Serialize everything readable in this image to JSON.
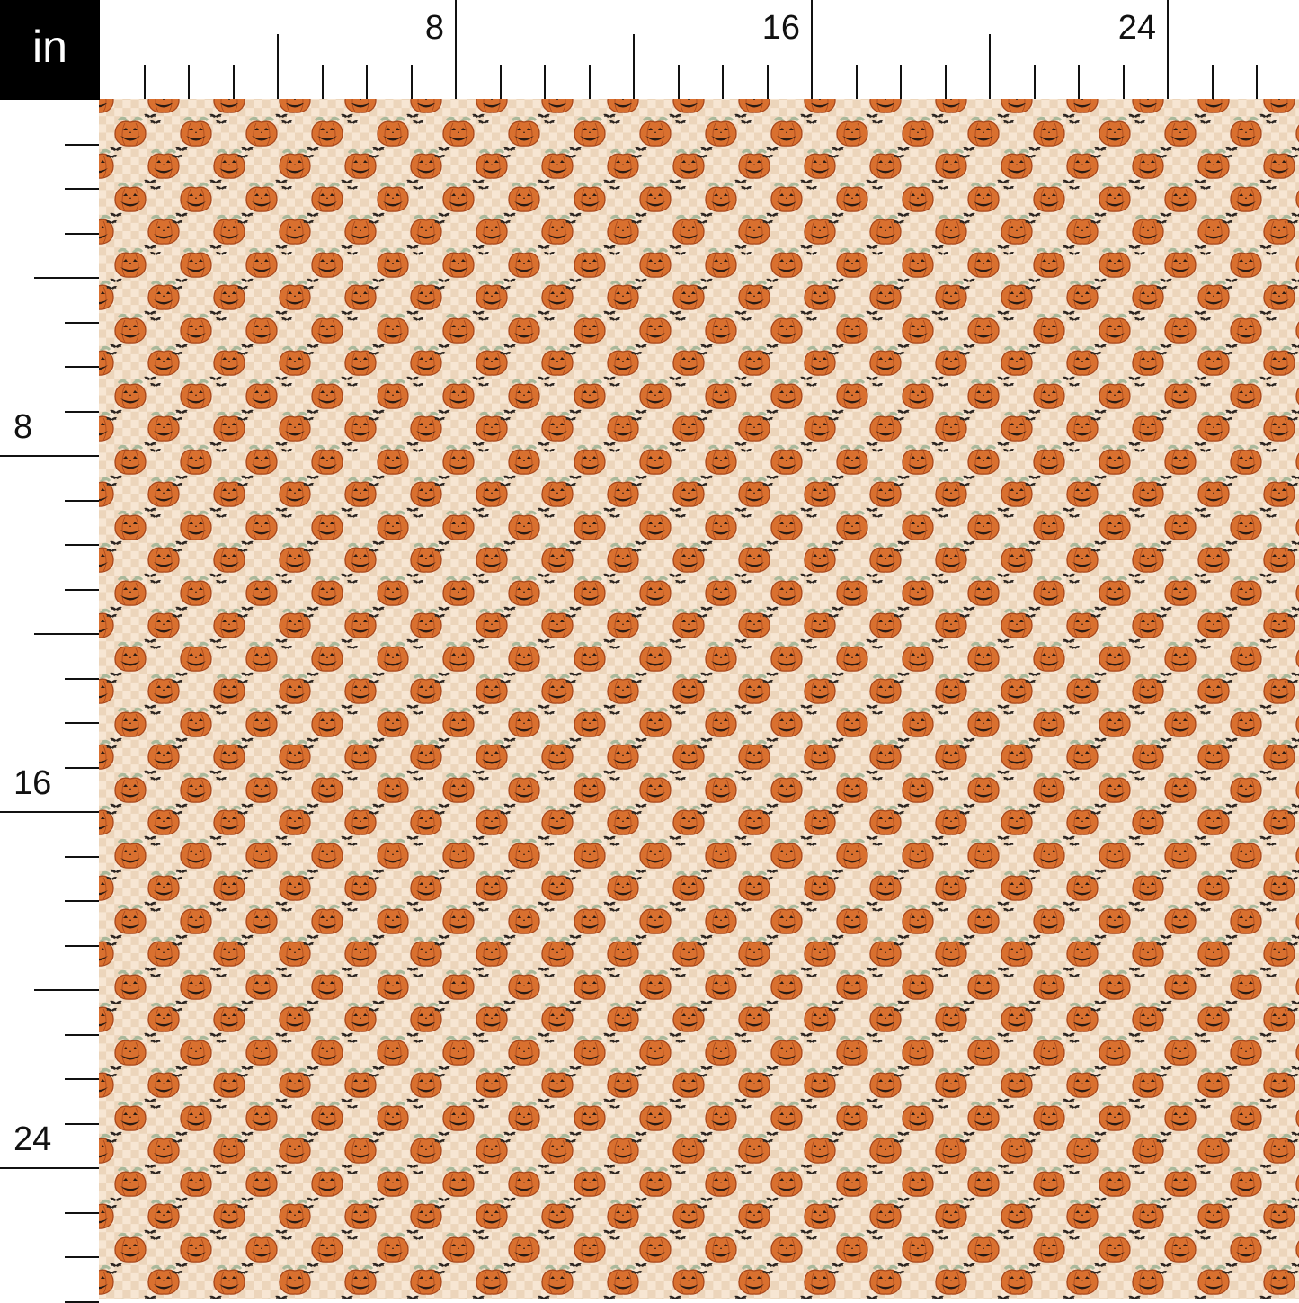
{
  "unit_label": "in",
  "ruler": {
    "top_labels": [
      "8",
      "16",
      "24"
    ],
    "left_labels": [
      "8",
      "16",
      "24"
    ],
    "inches_visible": 27
  },
  "fabric": {
    "motifs": [
      "jack-o-lantern pumpkin",
      "bats",
      "checkerboard background"
    ],
    "colors": {
      "background_light": "#f7e6d3",
      "checker_dark": "#ecd5bb",
      "pumpkin": "#d9702f",
      "pumpkin_outline": "#a8471c",
      "stem": "#a9b89a",
      "face": "#2a1a12",
      "bat": "#2b2420"
    }
  }
}
